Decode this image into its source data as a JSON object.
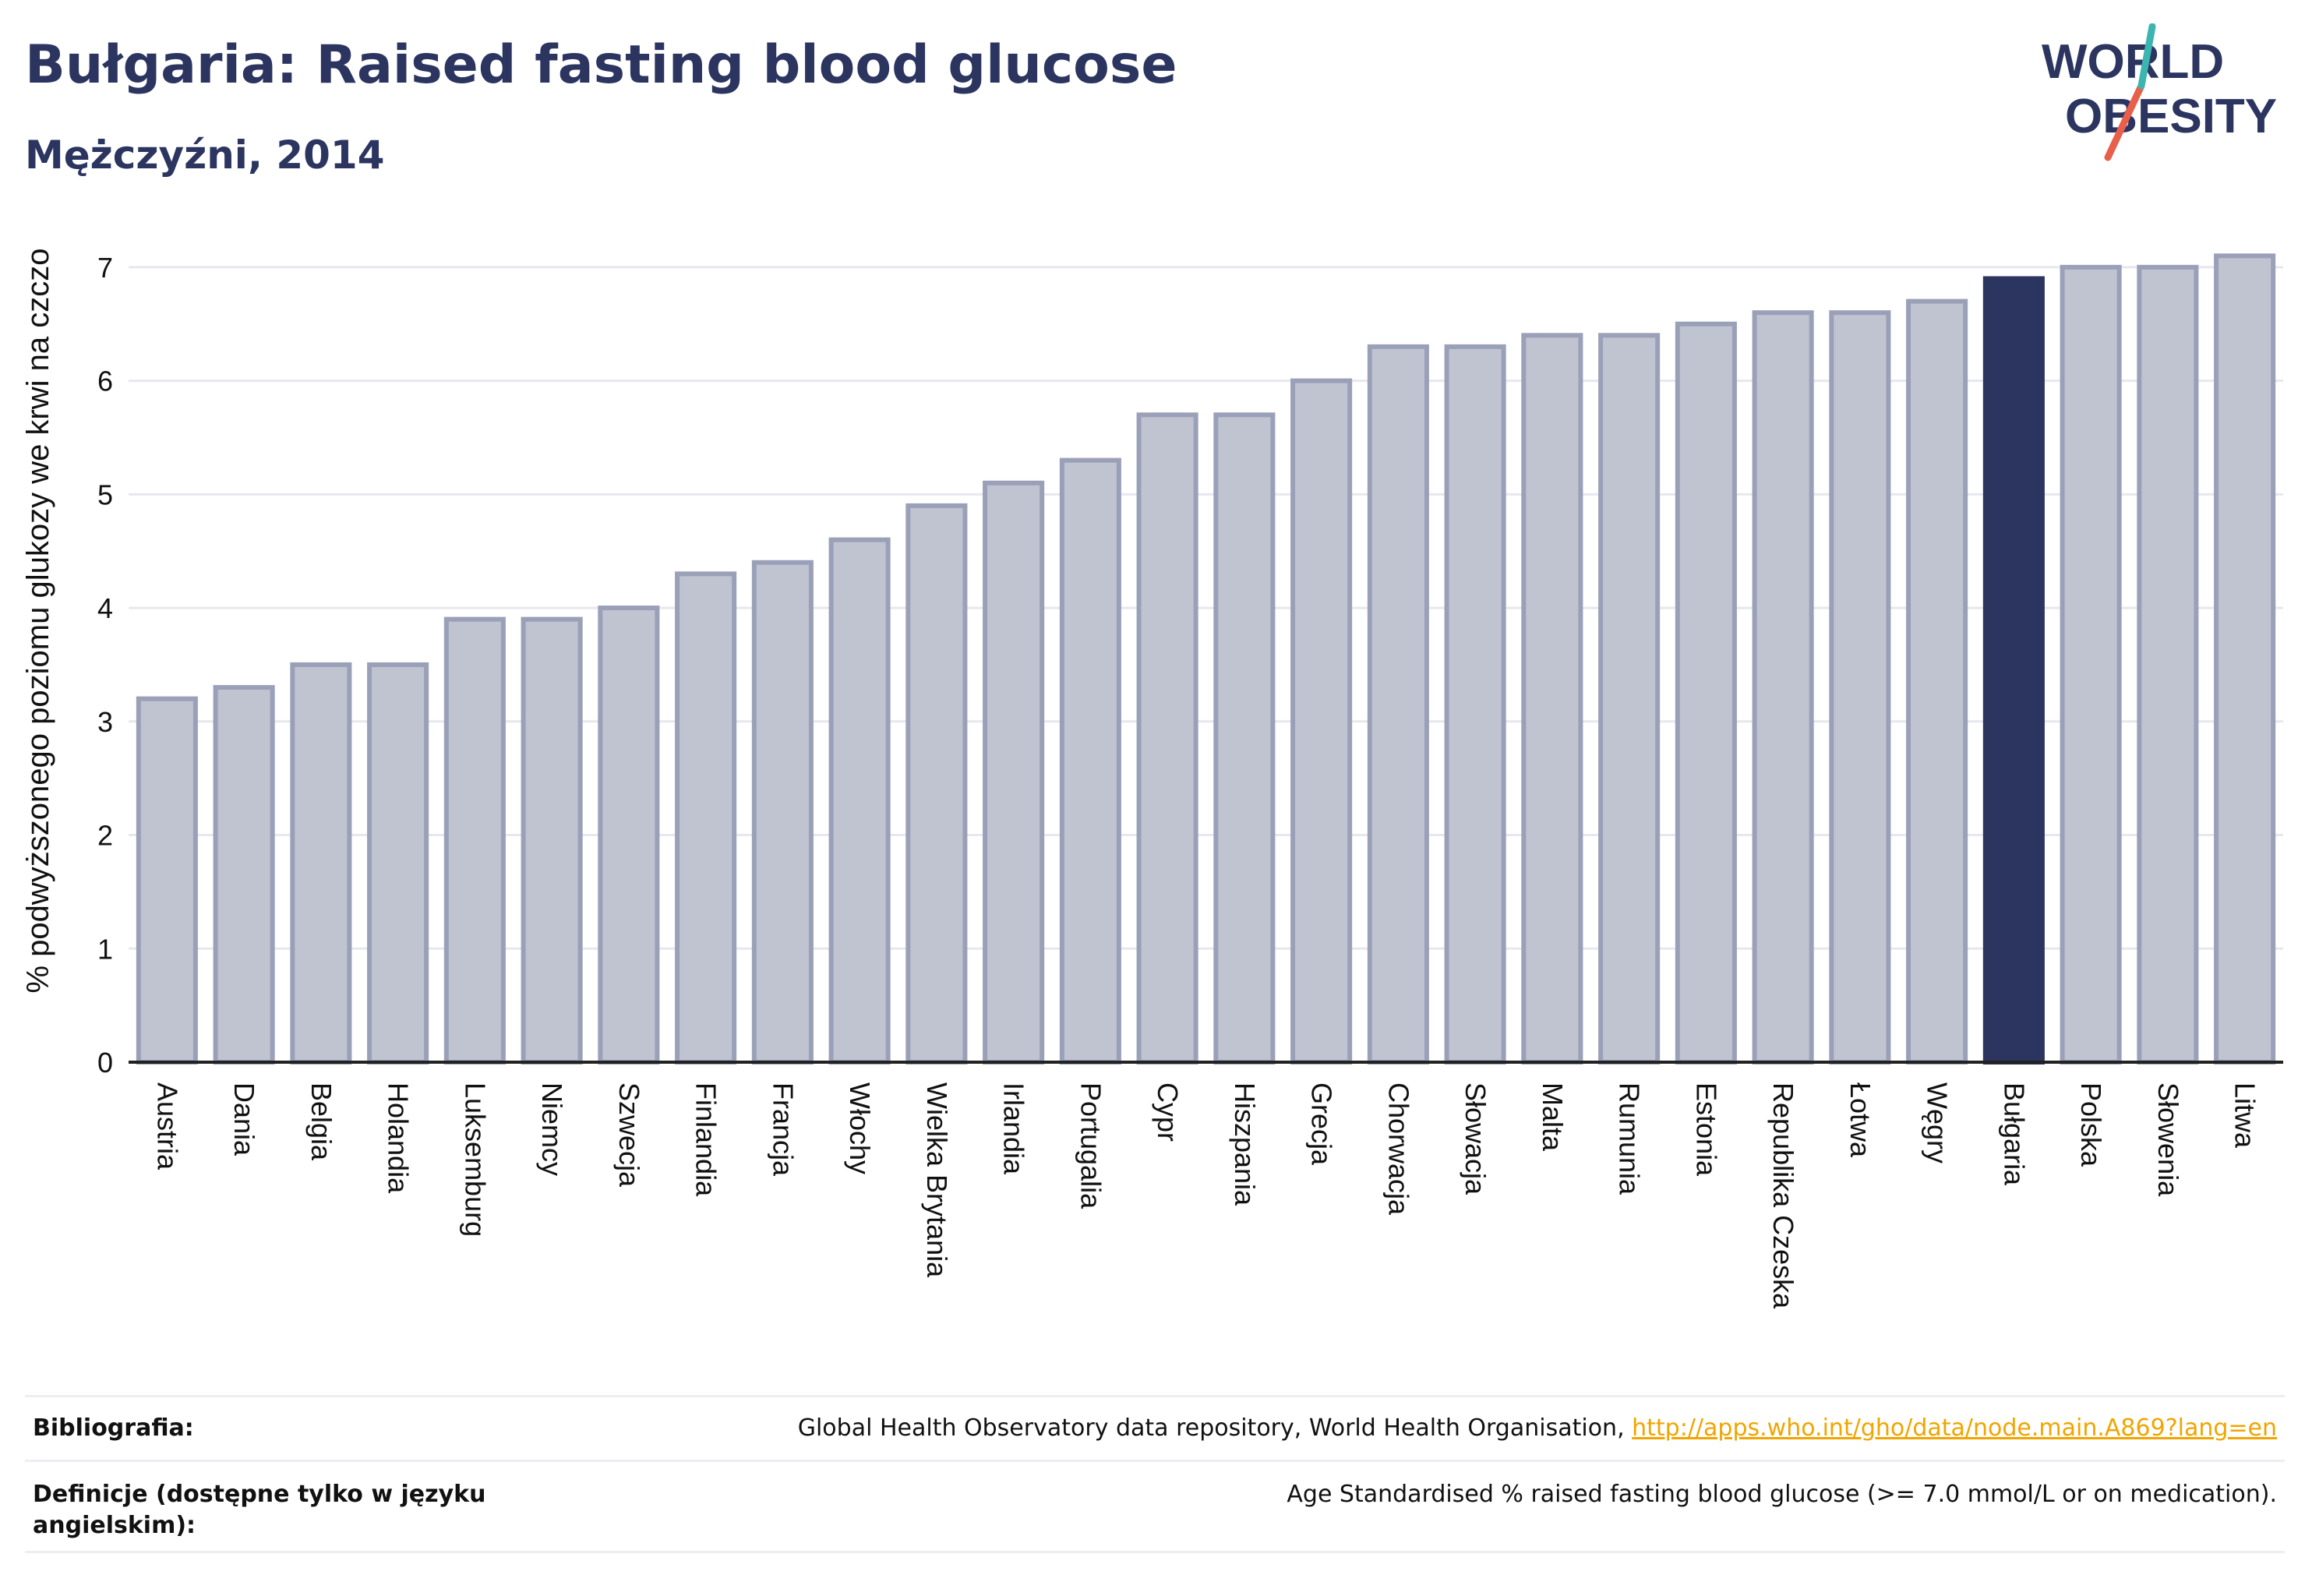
{
  "title": "Bułgaria: Raised fasting blood glucose",
  "subtitle": "Mężczyźni, 2014",
  "logo": {
    "line1": "WORLD",
    "line2": "OBESITY",
    "accent_color": "#e8604c",
    "accent_color2": "#3ab5b0"
  },
  "colors": {
    "bar_fill": "#c0c3d0",
    "bar_stroke": "#9aa0b8",
    "highlight": "#2b3560"
  },
  "chart_data": {
    "type": "bar",
    "title": "Bułgaria: Raised fasting blood glucose",
    "subtitle": "Mężczyźni, 2014",
    "xlabel": "",
    "ylabel": "% podwyższonego poziomu glukozy we krwi na czczo",
    "ylim": [
      0,
      7.5
    ],
    "yticks": [
      0,
      1,
      2,
      3,
      4,
      5,
      6,
      7
    ],
    "grid": true,
    "highlight": "Bułgaria",
    "categories": [
      "Austria",
      "Dania",
      "Belgia",
      "Holandia",
      "Luksemburg",
      "Niemcy",
      "Szwecja",
      "Finlandia",
      "Francja",
      "Włochy",
      "Wielka Brytania",
      "Irlandia",
      "Portugalia",
      "Cypr",
      "Hiszpania",
      "Grecja",
      "Chorwacja",
      "Słowacja",
      "Malta",
      "Rumunia",
      "Estonia",
      "Republika Czeska",
      "Łotwa",
      "Węgry",
      "Bułgaria",
      "Polska",
      "Słowenia",
      "Litwa"
    ],
    "values": [
      3.2,
      3.3,
      3.5,
      3.5,
      3.9,
      3.9,
      4.0,
      4.3,
      4.4,
      4.6,
      4.9,
      5.1,
      5.3,
      5.7,
      5.7,
      6.0,
      6.3,
      6.3,
      6.4,
      6.4,
      6.5,
      6.6,
      6.6,
      6.7,
      6.9,
      7.0,
      7.0,
      7.1
    ]
  },
  "footer": {
    "bibliography_label": "Bibliografia:",
    "bibliography_text": "Global Health Observatory data repository, World Health Organisation, ",
    "bibliography_link": "http://apps.who.int/gho/data/node.main.A869?lang=en",
    "definitions_label": "Definicje (dostępne tylko w języku angielskim):",
    "definitions_text": "Age Standardised % raised fasting blood glucose (>= 7.0 mmol/L or on medication)."
  }
}
